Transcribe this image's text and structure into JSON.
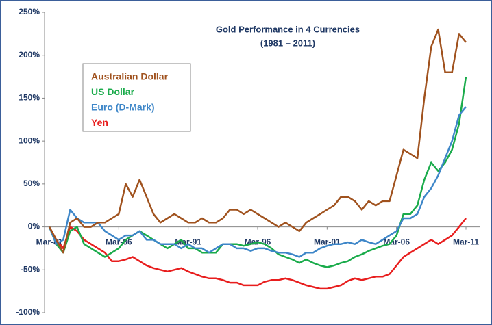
{
  "chart_data": {
    "type": "line",
    "title": "Gold Performance in 4 Currencies",
    "subtitle": "(1981 – 2011)",
    "categories": [
      "Mar-81",
      null,
      null,
      null,
      null,
      null,
      null,
      null,
      null,
      null,
      "Mar-86",
      null,
      null,
      null,
      null,
      null,
      null,
      null,
      null,
      null,
      "Mar-91",
      null,
      null,
      null,
      null,
      null,
      null,
      null,
      null,
      null,
      "Mar-96",
      null,
      null,
      null,
      null,
      null,
      null,
      null,
      null,
      null,
      "Mar-01",
      null,
      null,
      null,
      null,
      null,
      null,
      null,
      null,
      null,
      "Mar-06",
      null,
      null,
      null,
      null,
      null,
      null,
      null,
      null,
      null,
      "Mar-11"
    ],
    "series": [
      {
        "name": "Australian Dollar",
        "color": "#a0521e",
        "values": [
          0,
          -15,
          -30,
          5,
          10,
          0,
          0,
          5,
          5,
          10,
          15,
          50,
          35,
          55,
          35,
          15,
          5,
          10,
          15,
          10,
          5,
          5,
          10,
          5,
          5,
          10,
          20,
          20,
          15,
          20,
          15,
          10,
          5,
          0,
          5,
          0,
          -5,
          5,
          10,
          15,
          20,
          25,
          35,
          35,
          30,
          20,
          30,
          25,
          30,
          30,
          60,
          90,
          85,
          80,
          150,
          210,
          230,
          180,
          180,
          225,
          215
        ]
      },
      {
        "name": "US Dollar",
        "color": "#1aab4b",
        "values": [
          0,
          -20,
          -30,
          -5,
          0,
          -20,
          -25,
          -30,
          -35,
          -30,
          -25,
          -15,
          -10,
          -5,
          -10,
          -15,
          -20,
          -25,
          -20,
          -15,
          -25,
          -25,
          -30,
          -30,
          -30,
          -20,
          -20,
          -20,
          -22,
          -20,
          -18,
          -20,
          -25,
          -32,
          -35,
          -38,
          -42,
          -38,
          -42,
          -45,
          -47,
          -45,
          -42,
          -40,
          -35,
          -32,
          -28,
          -25,
          -22,
          -20,
          -10,
          15,
          15,
          25,
          55,
          75,
          65,
          75,
          90,
          120,
          175
        ]
      },
      {
        "name": "Euro (D-Mark)",
        "color": "#3d86c8",
        "values": [
          0,
          -20,
          -15,
          20,
          10,
          5,
          5,
          5,
          -5,
          -10,
          -15,
          -10,
          -10,
          -5,
          -15,
          -15,
          -20,
          -20,
          -20,
          -25,
          -20,
          -25,
          -25,
          -30,
          -25,
          -20,
          -20,
          -25,
          -25,
          -28,
          -25,
          -25,
          -28,
          -30,
          -30,
          -32,
          -35,
          -30,
          -30,
          -25,
          -22,
          -20,
          -20,
          -18,
          -20,
          -15,
          -18,
          -20,
          -15,
          -10,
          -5,
          10,
          10,
          15,
          35,
          45,
          60,
          80,
          100,
          130,
          140
        ]
      },
      {
        "name": "Yen",
        "color": "#e81e1e",
        "values": [
          0,
          -15,
          -25,
          0,
          -5,
          -15,
          -20,
          -25,
          -30,
          -40,
          -40,
          -38,
          -35,
          -40,
          -45,
          -48,
          -50,
          -52,
          -50,
          -48,
          -52,
          -55,
          -58,
          -60,
          -60,
          -62,
          -65,
          -65,
          -68,
          -68,
          -68,
          -64,
          -62,
          -62,
          -60,
          -62,
          -65,
          -68,
          -70,
          -72,
          -72,
          -70,
          -68,
          -63,
          -60,
          -62,
          -60,
          -58,
          -58,
          -55,
          -45,
          -35,
          -30,
          -25,
          -20,
          -15,
          -20,
          -15,
          -10,
          0,
          10
        ]
      }
    ],
    "ylim": [
      -100,
      250
    ],
    "yticks": [
      {
        "value": -100,
        "label": "-100%"
      },
      {
        "value": -50,
        "label": "-50%"
      },
      {
        "value": 0,
        "label": "0%"
      },
      {
        "value": 50,
        "label": "50%"
      },
      {
        "value": 100,
        "label": "100%"
      },
      {
        "value": 150,
        "label": "150%"
      },
      {
        "value": 200,
        "label": "200%"
      },
      {
        "value": 250,
        "label": "250%"
      }
    ],
    "grid": false
  }
}
